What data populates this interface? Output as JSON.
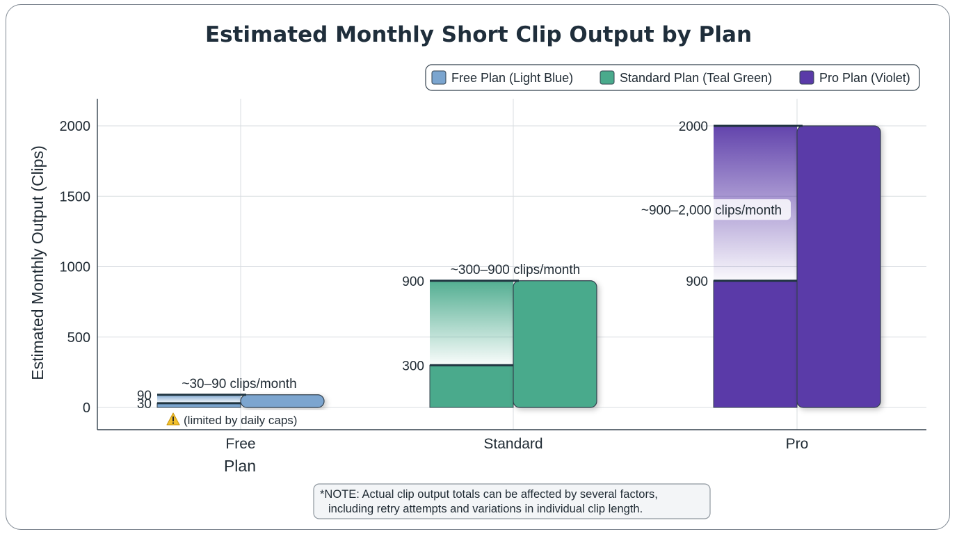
{
  "chart_data": {
    "type": "bar",
    "title": "Estimated Monthly Short Clip Output by Plan",
    "xlabel": "Plan",
    "ylabel": "Estimated Monthly Output (Clips)",
    "ylim": [
      0,
      2150
    ],
    "yticks": [
      0,
      500,
      1000,
      1500,
      2000
    ],
    "grid": true,
    "legend_position": "top-right",
    "categories": [
      "Free",
      "Standard",
      "Pro"
    ],
    "series": [
      {
        "key": "free",
        "name": "Free Plan (Light Blue)",
        "color": "#7ba5cf",
        "category": "Free",
        "min": 30,
        "max": 90,
        "min_label": "30",
        "max_label": "90",
        "range_label": "~30–90 clips/month",
        "note": "(limited by daily caps)"
      },
      {
        "key": "standard",
        "name": "Standard Plan (Teal Green)",
        "color": "#4aaa8c",
        "category": "Standard",
        "min": 300,
        "max": 900,
        "min_label": "300",
        "max_label": "900",
        "range_label": "~300–900 clips/month"
      },
      {
        "key": "pro",
        "name": "Pro Plan (Violet)",
        "color": "#5a3aa8",
        "category": "Pro",
        "min": 900,
        "max": 2000,
        "min_label": "900",
        "max_label": "2000",
        "range_label": "~900–2,000 clips/month"
      }
    ],
    "footnote": [
      "*NOTE: Actual clip output totals can be affected by several factors,",
      "including retry attempts and variations in individual clip length."
    ]
  },
  "icons": {
    "warning": "warning-icon"
  }
}
